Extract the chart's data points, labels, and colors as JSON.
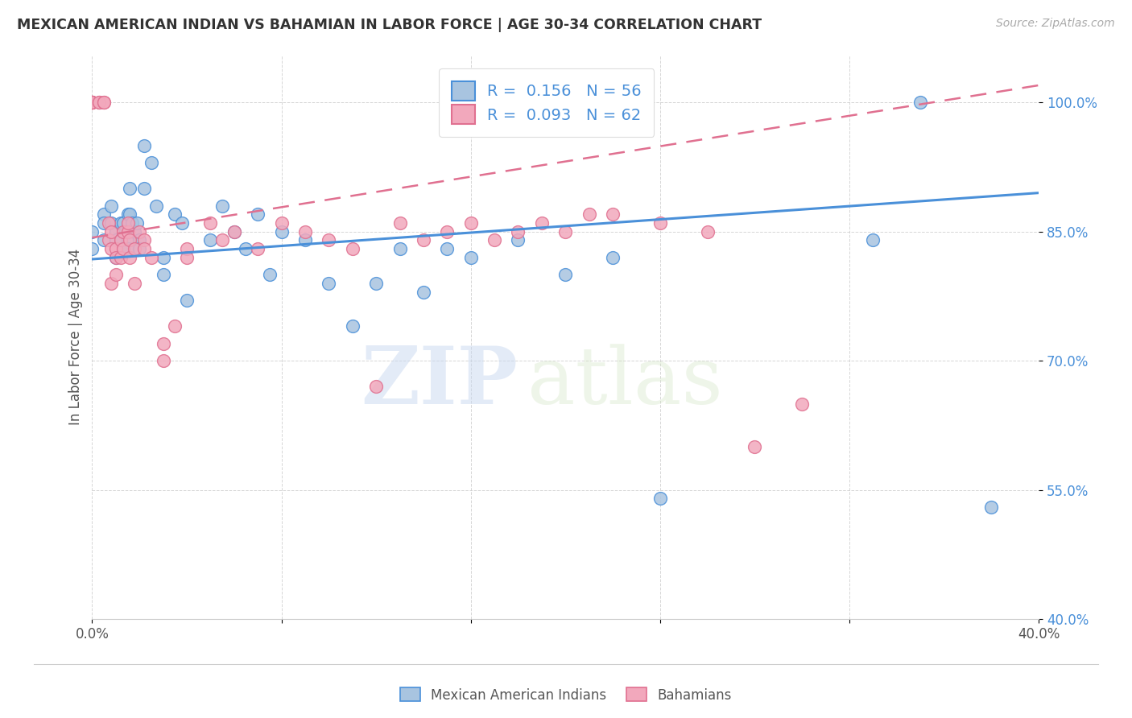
{
  "title": "MEXICAN AMERICAN INDIAN VS BAHAMIAN IN LABOR FORCE | AGE 30-34 CORRELATION CHART",
  "source": "Source: ZipAtlas.com",
  "ylabel": "In Labor Force | Age 30-34",
  "xlim": [
    0.0,
    0.4
  ],
  "ylim": [
    0.4,
    1.055
  ],
  "yticks": [
    0.4,
    0.55,
    0.7,
    0.85,
    1.0
  ],
  "ytick_labels": [
    "40.0%",
    "55.0%",
    "70.0%",
    "85.0%",
    "100.0%"
  ],
  "xticks": [
    0.0,
    0.08,
    0.16,
    0.24,
    0.32,
    0.4
  ],
  "xtick_labels": [
    "0.0%",
    "",
    "",
    "",
    "",
    "40.0%"
  ],
  "blue_R": 0.156,
  "blue_N": 56,
  "pink_R": 0.093,
  "pink_N": 62,
  "blue_color": "#a8c4e0",
  "pink_color": "#f2a8bc",
  "blue_line_color": "#4a90d9",
  "pink_line_color": "#e07090",
  "watermark_zip": "ZIP",
  "watermark_atlas": "atlas",
  "blue_scatter_x": [
    0.0,
    0.0,
    0.005,
    0.005,
    0.005,
    0.008,
    0.008,
    0.01,
    0.01,
    0.01,
    0.012,
    0.012,
    0.013,
    0.013,
    0.014,
    0.015,
    0.015,
    0.015,
    0.016,
    0.016,
    0.017,
    0.018,
    0.019,
    0.02,
    0.02,
    0.022,
    0.022,
    0.025,
    0.027,
    0.03,
    0.03,
    0.035,
    0.038,
    0.04,
    0.05,
    0.055,
    0.06,
    0.065,
    0.07,
    0.075,
    0.08,
    0.09,
    0.1,
    0.11,
    0.12,
    0.13,
    0.14,
    0.15,
    0.16,
    0.18,
    0.2,
    0.22,
    0.24,
    0.33,
    0.35,
    0.38
  ],
  "blue_scatter_y": [
    0.85,
    0.83,
    0.87,
    0.86,
    0.84,
    0.88,
    0.86,
    0.85,
    0.84,
    0.82,
    0.86,
    0.84,
    0.83,
    0.86,
    0.85,
    0.84,
    0.87,
    0.83,
    0.9,
    0.87,
    0.86,
    0.85,
    0.86,
    0.84,
    0.83,
    0.95,
    0.9,
    0.93,
    0.88,
    0.82,
    0.8,
    0.87,
    0.86,
    0.77,
    0.84,
    0.88,
    0.85,
    0.83,
    0.87,
    0.8,
    0.85,
    0.84,
    0.79,
    0.74,
    0.79,
    0.83,
    0.78,
    0.83,
    0.82,
    0.84,
    0.8,
    0.82,
    0.54,
    0.84,
    1.0,
    0.53
  ],
  "pink_scatter_x": [
    0.0,
    0.0,
    0.0,
    0.0,
    0.0,
    0.0,
    0.0,
    0.0,
    0.003,
    0.003,
    0.005,
    0.005,
    0.007,
    0.007,
    0.008,
    0.008,
    0.008,
    0.01,
    0.01,
    0.01,
    0.012,
    0.012,
    0.013,
    0.013,
    0.015,
    0.015,
    0.016,
    0.016,
    0.018,
    0.018,
    0.02,
    0.022,
    0.022,
    0.025,
    0.03,
    0.03,
    0.035,
    0.04,
    0.04,
    0.05,
    0.055,
    0.06,
    0.07,
    0.08,
    0.09,
    0.1,
    0.11,
    0.12,
    0.13,
    0.14,
    0.15,
    0.16,
    0.17,
    0.18,
    0.19,
    0.2,
    0.21,
    0.22,
    0.24,
    0.26,
    0.28,
    0.3
  ],
  "pink_scatter_y": [
    1.0,
    1.0,
    1.0,
    1.0,
    1.0,
    1.0,
    1.0,
    1.0,
    1.0,
    1.0,
    1.0,
    1.0,
    0.86,
    0.84,
    0.85,
    0.83,
    0.79,
    0.83,
    0.82,
    0.8,
    0.84,
    0.82,
    0.85,
    0.83,
    0.85,
    0.86,
    0.82,
    0.84,
    0.83,
    0.79,
    0.85,
    0.84,
    0.83,
    0.82,
    0.72,
    0.7,
    0.74,
    0.83,
    0.82,
    0.86,
    0.84,
    0.85,
    0.83,
    0.86,
    0.85,
    0.84,
    0.83,
    0.67,
    0.86,
    0.84,
    0.85,
    0.86,
    0.84,
    0.85,
    0.86,
    0.85,
    0.87,
    0.87,
    0.86,
    0.85,
    0.6,
    0.65
  ],
  "blue_trend_x": [
    0.0,
    0.4
  ],
  "blue_trend_y": [
    0.818,
    0.895
  ],
  "pink_trend_x": [
    0.0,
    0.4
  ],
  "pink_trend_y": [
    0.843,
    1.02
  ]
}
